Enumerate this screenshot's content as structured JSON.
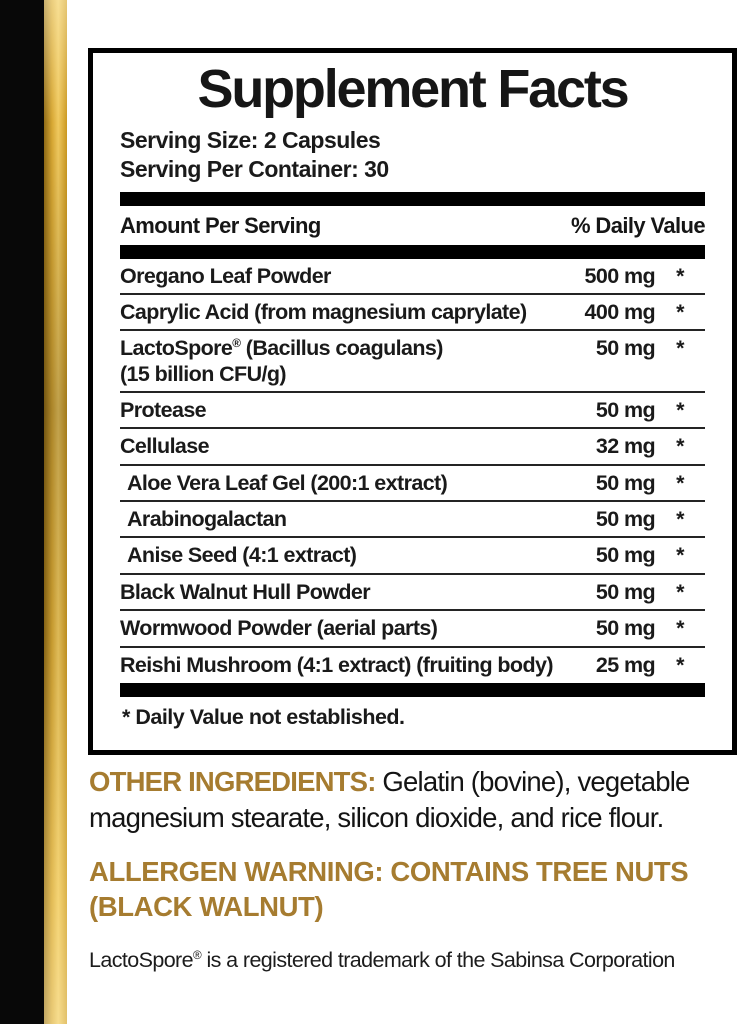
{
  "colors": {
    "accent_gold": "#a67c30",
    "stripe_gold_light": "#f0c95f",
    "stripe_gold_dark": "#8f6a16",
    "bar_black": "#080808"
  },
  "panel": {
    "title": "Supplement Facts",
    "serving_size": "Serving Size: 2 Capsules",
    "serving_per_container": "Serving Per Container: 30",
    "header": {
      "amount_label": "Amount Per Serving",
      "daily_value_label": "% Daily Value"
    },
    "rows": [
      {
        "name": "Oregano Leaf Powder",
        "name2": "",
        "amount": "500 mg",
        "dv": "*",
        "indent": false
      },
      {
        "name": "Caprylic Acid (from magnesium caprylate)",
        "name2": "",
        "amount": "400 mg",
        "dv": "*",
        "indent": false
      },
      {
        "name": "LactoSpore® (Bacillus coagulans)",
        "name2": "(15 billion CFU/g)",
        "amount": "50 mg",
        "dv": "*",
        "indent": false
      },
      {
        "name": "Protease",
        "name2": "",
        "amount": "50 mg",
        "dv": "*",
        "indent": false
      },
      {
        "name": "Cellulase",
        "name2": "",
        "amount": "32 mg",
        "dv": "*",
        "indent": false
      },
      {
        "name": "Aloe Vera Leaf Gel (200:1 extract)",
        "name2": "",
        "amount": "50 mg",
        "dv": "*",
        "indent": true
      },
      {
        "name": "Arabinogalactan",
        "name2": "",
        "amount": "50 mg",
        "dv": "*",
        "indent": true
      },
      {
        "name": "Anise Seed (4:1 extract)",
        "name2": "",
        "amount": "50 mg",
        "dv": "*",
        "indent": true
      },
      {
        "name": "Black Walnut Hull Powder",
        "name2": "",
        "amount": "50 mg",
        "dv": "*",
        "indent": false
      },
      {
        "name": "Wormwood Powder (aerial parts)",
        "name2": "",
        "amount": "50 mg",
        "dv": "*",
        "indent": false
      },
      {
        "name": "Reishi Mushroom (4:1 extract) (fruiting body)",
        "name2": "",
        "amount": "25 mg",
        "dv": "*",
        "indent": false
      }
    ],
    "footnote": "* Daily Value not established."
  },
  "below": {
    "other_ingredients_label": "OTHER INGREDIENTS:",
    "other_ingredients_text": " Gelatin (bovine), vegetable magnesium stearate, silicon dioxide, and rice flour.",
    "allergen_warning": "ALLERGEN WARNING: CONTAINS TREE NUTS (BLACK WALNUT)",
    "trademark": "LactoSpore® is a registered trademark of the Sabinsa Corporation"
  }
}
